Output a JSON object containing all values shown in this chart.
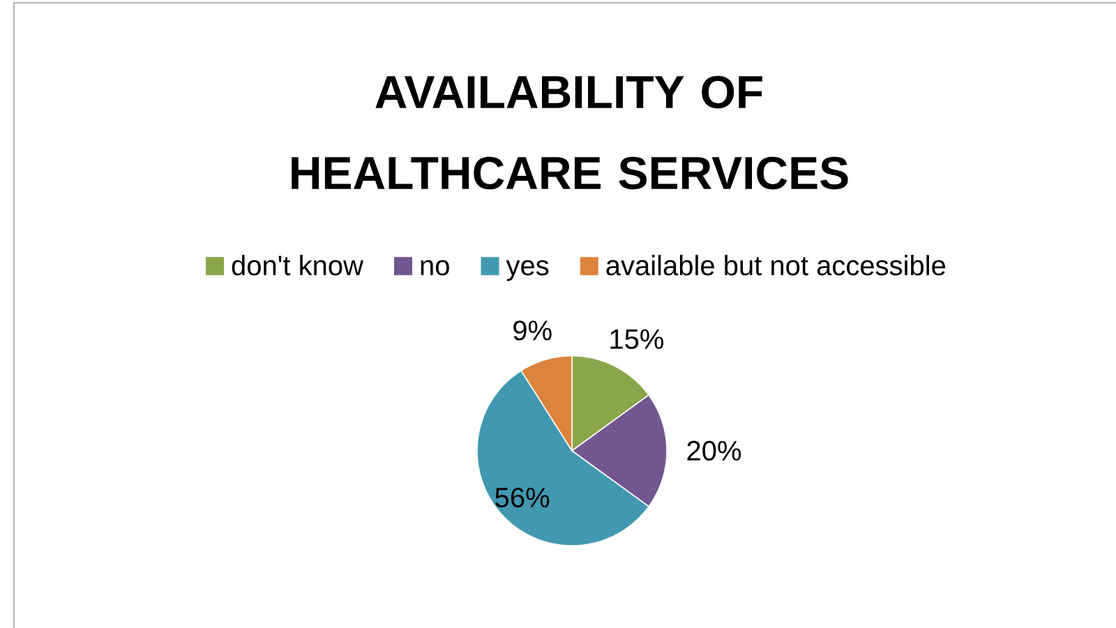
{
  "chart_data": {
    "type": "pie",
    "title": "AVAILABILITY OF HEALTHCARE SERVICES",
    "categories": [
      "don't know",
      "no",
      "yes",
      "available but not accessible"
    ],
    "values": [
      15,
      20,
      56,
      9
    ],
    "colors": [
      "#8aa64a",
      "#71578f",
      "#4298b0",
      "#db843d"
    ],
    "value_labels": [
      "15%",
      "20%",
      "56%",
      "9%"
    ],
    "legend": "top"
  }
}
